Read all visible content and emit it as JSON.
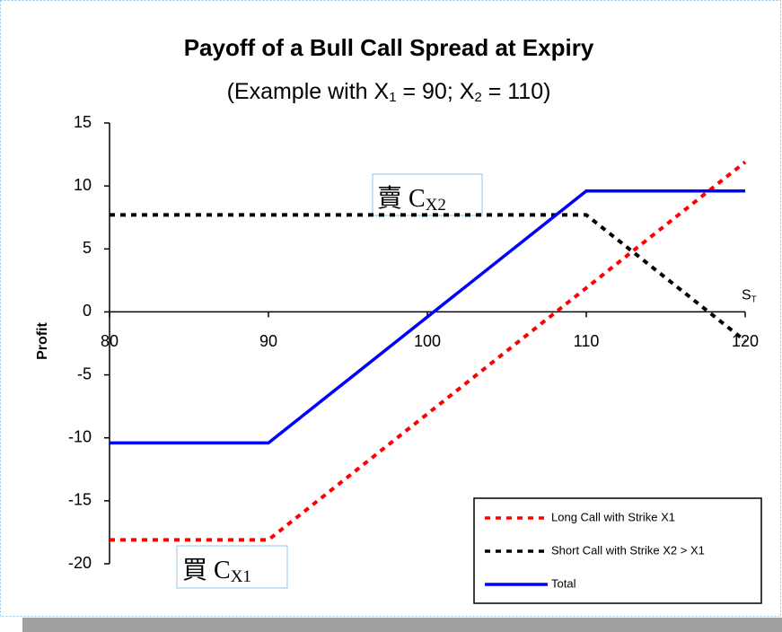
{
  "chart_data": {
    "type": "line",
    "title": "Payoff of a Bull Call Spread at Expiry",
    "subtitle_parts": [
      "(Example with X",
      "1",
      " = 90; X",
      "2",
      " = 110)"
    ],
    "ylabel": "Profit",
    "xlabel": {
      "text": "S",
      "sub": "T"
    },
    "xlim": [
      80,
      120
    ],
    "xticks": [
      80,
      90,
      100,
      110,
      120
    ],
    "ylim": [
      -20,
      15
    ],
    "yticks": [
      -20,
      -15,
      -10,
      -5,
      0,
      5,
      10,
      15
    ],
    "legend": "lower right",
    "series": [
      {
        "name": "Long Call with Strike X1",
        "color": "#ff0000",
        "style": "dashed",
        "x": [
          80,
          90,
          120
        ],
        "values": [
          -18.1,
          -18.1,
          11.9
        ]
      },
      {
        "name": "Short Call with Strike X2 > X1",
        "color": "#000000",
        "style": "dashed",
        "x": [
          80,
          110,
          120
        ],
        "values": [
          7.7,
          7.7,
          -2.3
        ]
      },
      {
        "name": "Total",
        "color": "#0000ff",
        "style": "solid",
        "x": [
          80,
          90,
          110,
          120
        ],
        "values": [
          -10.4,
          -10.4,
          9.6,
          9.6
        ]
      }
    ],
    "annotations": [
      {
        "text": "賣 C",
        "sub": "X2"
      },
      {
        "text": "買 C",
        "sub": "X1"
      }
    ]
  }
}
